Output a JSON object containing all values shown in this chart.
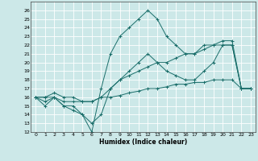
{
  "xlabel": "Humidex (Indice chaleur)",
  "bg_color": "#cce8e8",
  "grid_color": "#ffffff",
  "line_color": "#1a6e6a",
  "xlim": [
    -0.5,
    23.5
  ],
  "ylim": [
    12,
    27
  ],
  "xticks": [
    0,
    1,
    2,
    3,
    4,
    5,
    6,
    7,
    8,
    9,
    10,
    11,
    12,
    13,
    14,
    15,
    16,
    17,
    18,
    19,
    20,
    21,
    22,
    23
  ],
  "yticks": [
    12,
    13,
    14,
    15,
    16,
    17,
    18,
    19,
    20,
    21,
    22,
    23,
    24,
    25,
    26
  ],
  "series": [
    {
      "x": [
        0,
        1,
        2,
        3,
        4,
        5,
        6,
        7,
        8,
        9,
        10,
        11,
        12,
        13,
        14,
        15,
        16,
        17,
        18,
        19,
        20,
        21,
        22,
        23
      ],
      "y": [
        16,
        15,
        16,
        15,
        15,
        14,
        12,
        17,
        21,
        23,
        24,
        25,
        26,
        25,
        23,
        22,
        21,
        21,
        22,
        22,
        22,
        22,
        17,
        17
      ]
    },
    {
      "x": [
        0,
        1,
        2,
        3,
        4,
        5,
        6,
        7,
        8,
        9,
        10,
        11,
        12,
        13,
        14,
        15,
        16,
        17,
        18,
        19,
        20,
        21,
        22,
        23
      ],
      "y": [
        16,
        15.5,
        16,
        15,
        14.5,
        14,
        13,
        14,
        17,
        18,
        19,
        20,
        21,
        20,
        19,
        18.5,
        18,
        18,
        19,
        20,
        22,
        22,
        17,
        17
      ]
    },
    {
      "x": [
        0,
        1,
        2,
        3,
        4,
        5,
        6,
        7,
        8,
        9,
        10,
        11,
        12,
        13,
        14,
        15,
        16,
        17,
        18,
        19,
        20,
        21,
        22,
        23
      ],
      "y": [
        16,
        16,
        16.5,
        16,
        16,
        15.5,
        15.5,
        16,
        17,
        18,
        18.5,
        19,
        19.5,
        20,
        20,
        20.5,
        21,
        21,
        21.5,
        22,
        22.5,
        22.5,
        17,
        17
      ]
    },
    {
      "x": [
        0,
        1,
        2,
        3,
        4,
        5,
        6,
        7,
        8,
        9,
        10,
        11,
        12,
        13,
        14,
        15,
        16,
        17,
        18,
        19,
        20,
        21,
        22,
        23
      ],
      "y": [
        16,
        16,
        16,
        15.5,
        15.5,
        15.5,
        15.5,
        16,
        16,
        16.2,
        16.5,
        16.7,
        17,
        17,
        17.2,
        17.5,
        17.5,
        17.7,
        17.7,
        18,
        18,
        18,
        17,
        17
      ]
    }
  ]
}
